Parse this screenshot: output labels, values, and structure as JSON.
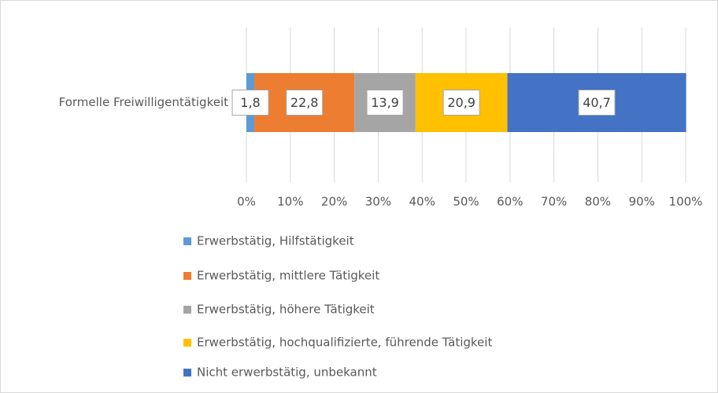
{
  "chart_data": {
    "type": "stacked_bar_horizontal",
    "categories": [
      "Formelle Freiwilligentätigkeit"
    ],
    "series": [
      {
        "name": "Erwerbstätig, Hilfstätigkeit",
        "color": "#5b9bd5",
        "values": [
          1.8
        ],
        "value_labels": [
          "1,8"
        ]
      },
      {
        "name": "Erwerbstätig, mittlere Tätigkeit",
        "color": "#ed7d31",
        "values": [
          22.8
        ],
        "value_labels": [
          "22,8"
        ]
      },
      {
        "name": "Erwerbstätig, höhere Tätigkeit",
        "color": "#a5a5a5",
        "values": [
          13.9
        ],
        "value_labels": [
          "13,9"
        ]
      },
      {
        "name": "Erwerbstätig, hochqualifizierte, führende Tätigkeit",
        "color": "#ffc000",
        "values": [
          20.9
        ],
        "value_labels": [
          "20,9"
        ]
      },
      {
        "name": "Nicht erwerbstätig, unbekannt",
        "color": "#4472c4",
        "values": [
          40.7
        ],
        "value_labels": [
          "40,7"
        ]
      }
    ],
    "xlim": [
      0,
      100
    ],
    "xticks": [
      {
        "value": 0,
        "label": "0%"
      },
      {
        "value": 10,
        "label": "10%"
      },
      {
        "value": 20,
        "label": "20%"
      },
      {
        "value": 30,
        "label": "30%"
      },
      {
        "value": 40,
        "label": "40%"
      },
      {
        "value": 50,
        "label": "50%"
      },
      {
        "value": 60,
        "label": "60%"
      },
      {
        "value": 70,
        "label": "70%"
      },
      {
        "value": 80,
        "label": "80%"
      },
      {
        "value": 90,
        "label": "90%"
      },
      {
        "value": 100,
        "label": "100%"
      }
    ],
    "grid": true,
    "legend": "bottom"
  }
}
